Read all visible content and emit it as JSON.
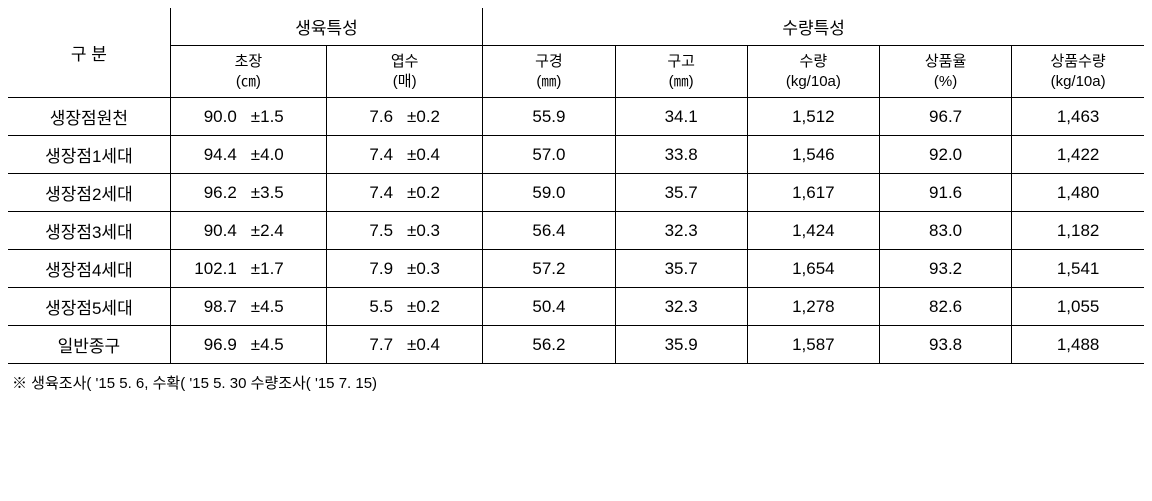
{
  "headers": {
    "category": "구 분",
    "growth_group": "생육특성",
    "yield_group": "수량특성",
    "plant_height": "초장",
    "plant_height_unit": "(㎝)",
    "leaf_count": "엽수",
    "leaf_count_unit": "(매)",
    "bulb_diameter": "구경",
    "bulb_diameter_unit": "(㎜)",
    "bulb_height": "구고",
    "bulb_height_unit": "(㎜)",
    "yield": "수량",
    "yield_unit": "(kg/10a)",
    "marketable_rate": "상품율",
    "marketable_rate_unit": "(%)",
    "marketable_yield": "상품수량",
    "marketable_yield_unit": "(kg/10a)"
  },
  "rows": [
    {
      "label": "생장점원천",
      "height_val": "90.0",
      "height_err": "±1.5",
      "leaf_val": "7.6",
      "leaf_err": "±0.2",
      "diameter": "55.9",
      "bheight": "34.1",
      "yield": "1,512",
      "rate": "96.7",
      "myield": "1,463"
    },
    {
      "label": "생장점1세대",
      "height_val": "94.4",
      "height_err": "±4.0",
      "leaf_val": "7.4",
      "leaf_err": "±0.4",
      "diameter": "57.0",
      "bheight": "33.8",
      "yield": "1,546",
      "rate": "92.0",
      "myield": "1,422"
    },
    {
      "label": "생장점2세대",
      "height_val": "96.2",
      "height_err": "±3.5",
      "leaf_val": "7.4",
      "leaf_err": "±0.2",
      "diameter": "59.0",
      "bheight": "35.7",
      "yield": "1,617",
      "rate": "91.6",
      "myield": "1,480"
    },
    {
      "label": "생장점3세대",
      "height_val": "90.4",
      "height_err": "±2.4",
      "leaf_val": "7.5",
      "leaf_err": "±0.3",
      "diameter": "56.4",
      "bheight": "32.3",
      "yield": "1,424",
      "rate": "83.0",
      "myield": "1,182"
    },
    {
      "label": "생장점4세대",
      "height_val": "102.1",
      "height_err": "±1.7",
      "leaf_val": "7.9",
      "leaf_err": "±0.3",
      "diameter": "57.2",
      "bheight": "35.7",
      "yield": "1,654",
      "rate": "93.2",
      "myield": "1,541"
    },
    {
      "label": "생장점5세대",
      "height_val": "98.7",
      "height_err": "±4.5",
      "leaf_val": "5.5",
      "leaf_err": "±0.2",
      "diameter": "50.4",
      "bheight": "32.3",
      "yield": "1,278",
      "rate": "82.6",
      "myield": "1,055"
    },
    {
      "label": "일반종구",
      "height_val": "96.9",
      "height_err": "±4.5",
      "leaf_val": "7.7",
      "leaf_err": "±0.4",
      "diameter": "56.2",
      "bheight": "35.9",
      "yield": "1,587",
      "rate": "93.8",
      "myield": "1,488"
    }
  ],
  "footnote": "※ 생육조사( '15 5. 6, 수확( '15 5. 30 수량조사( '15 7. 15)",
  "style": {
    "border_color": "#000000",
    "background_color": "#ffffff",
    "font_size_body": 17,
    "font_size_unit": 15,
    "font_size_footnote": 15,
    "font_family": "Malgun Gothic"
  }
}
